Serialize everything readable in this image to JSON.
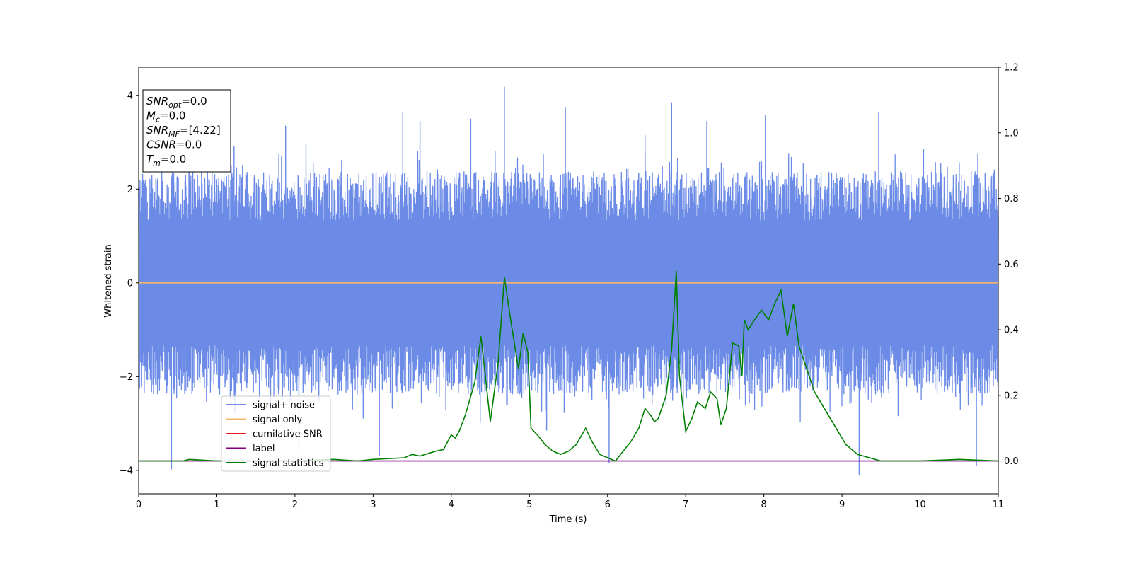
{
  "chart_data": {
    "type": "line",
    "xlabel": "Time (s)",
    "ylabel": "Whitened strain",
    "xlim": [
      0,
      11
    ],
    "ylim_left": [
      -4.5,
      4.6
    ],
    "ylim_right": [
      -0.1,
      1.2
    ],
    "x_ticks": [
      "0",
      "1",
      "2",
      "3",
      "4",
      "5",
      "6",
      "7",
      "8",
      "9",
      "10",
      "11"
    ],
    "y_ticks_left": [
      "4",
      "2",
      "0",
      "−2",
      "−4"
    ],
    "y_ticks_left_values": [
      4,
      2,
      0,
      -2,
      -4
    ],
    "y_ticks_right": [
      "1.2",
      "1.0",
      "0.8",
      "0.6",
      "0.4",
      "0.2",
      "0.0"
    ],
    "y_ticks_right_values": [
      1.2,
      1.0,
      0.8,
      0.6,
      0.4,
      0.2,
      0.0
    ],
    "grid": false,
    "legend_position": "lower-left",
    "series": [
      {
        "name": "signal+ noise",
        "axis": "left",
        "color": "#6b8be6",
        "style": "noise",
        "amplitude_typical": 1.4,
        "peaks_x": [
          0.42,
          1.22,
          1.88,
          2.05,
          3.08,
          3.38,
          3.6,
          4.25,
          4.68,
          5.22,
          5.46,
          6.02,
          6.48,
          6.82,
          7.27,
          8.02,
          9.22,
          9.47,
          10.72
        ],
        "peaks_y": [
          -3.98,
          2.92,
          3.35,
          -3.62,
          -3.7,
          3.65,
          3.45,
          3.5,
          4.18,
          -3.15,
          3.75,
          -3.85,
          3.15,
          3.85,
          3.45,
          3.58,
          -4.1,
          3.65,
          -3.9
        ]
      },
      {
        "name": "signal only",
        "axis": "left",
        "color": "#f5b86a",
        "x": [
          0,
          11
        ],
        "y": [
          0,
          0
        ]
      },
      {
        "name": "cumilative SNR",
        "axis": "left",
        "color": "#e41a1c",
        "x": [],
        "y": []
      },
      {
        "name": "label",
        "axis": "right",
        "color": "#800080",
        "x": [
          0,
          11
        ],
        "y": [
          0,
          0
        ]
      },
      {
        "name": "signal statistics",
        "axis": "right",
        "color": "#008000",
        "x": [
          0,
          0.5,
          0.56,
          0.65,
          1.0,
          1.5,
          2.0,
          2.5,
          2.8,
          3.0,
          3.4,
          3.5,
          3.6,
          3.8,
          3.9,
          4.0,
          4.05,
          4.1,
          4.18,
          4.3,
          4.38,
          4.5,
          4.6,
          4.68,
          4.76,
          4.86,
          4.92,
          4.98,
          5.02,
          5.1,
          5.2,
          5.3,
          5.4,
          5.5,
          5.6,
          5.72,
          5.8,
          5.9,
          6.1,
          6.2,
          6.3,
          6.4,
          6.48,
          6.55,
          6.6,
          6.65,
          6.75,
          6.82,
          6.88,
          6.92,
          7.0,
          7.08,
          7.15,
          7.25,
          7.32,
          7.4,
          7.45,
          7.52,
          7.6,
          7.68,
          7.72,
          7.75,
          7.8,
          7.88,
          7.97,
          8.06,
          8.14,
          8.22,
          8.3,
          8.38,
          8.45,
          8.55,
          8.65,
          8.75,
          8.85,
          8.95,
          9.05,
          9.2,
          9.5,
          10.0,
          10.5,
          11.0
        ],
        "y": [
          0.0,
          0.0,
          0.0,
          0.005,
          0.0,
          0.0,
          0.0,
          0.005,
          0.0,
          0.005,
          0.01,
          0.02,
          0.015,
          0.03,
          0.035,
          0.08,
          0.07,
          0.09,
          0.14,
          0.24,
          0.38,
          0.12,
          0.3,
          0.56,
          0.43,
          0.28,
          0.39,
          0.33,
          0.1,
          0.08,
          0.05,
          0.03,
          0.02,
          0.03,
          0.05,
          0.1,
          0.06,
          0.02,
          0.0,
          0.03,
          0.06,
          0.1,
          0.16,
          0.14,
          0.12,
          0.13,
          0.2,
          0.34,
          0.58,
          0.26,
          0.09,
          0.13,
          0.18,
          0.16,
          0.21,
          0.19,
          0.11,
          0.16,
          0.36,
          0.35,
          0.26,
          0.43,
          0.4,
          0.43,
          0.46,
          0.43,
          0.48,
          0.52,
          0.38,
          0.48,
          0.35,
          0.28,
          0.21,
          0.17,
          0.13,
          0.09,
          0.05,
          0.02,
          0.0,
          0.0,
          0.005,
          0.0
        ]
      }
    ],
    "annotation_box": {
      "lines": [
        {
          "main": "SNR",
          "sub": "opt",
          "rest": "=0.0"
        },
        {
          "main": "M",
          "sub": "c",
          "rest": "=0.0"
        },
        {
          "main": "SNR",
          "sub": "MF",
          "rest": "=[4.22]"
        },
        {
          "main": "CSNR",
          "sub": "",
          "rest": "=0.0"
        },
        {
          "main": "T",
          "sub": "m",
          "rest": "=0.0"
        }
      ]
    }
  }
}
